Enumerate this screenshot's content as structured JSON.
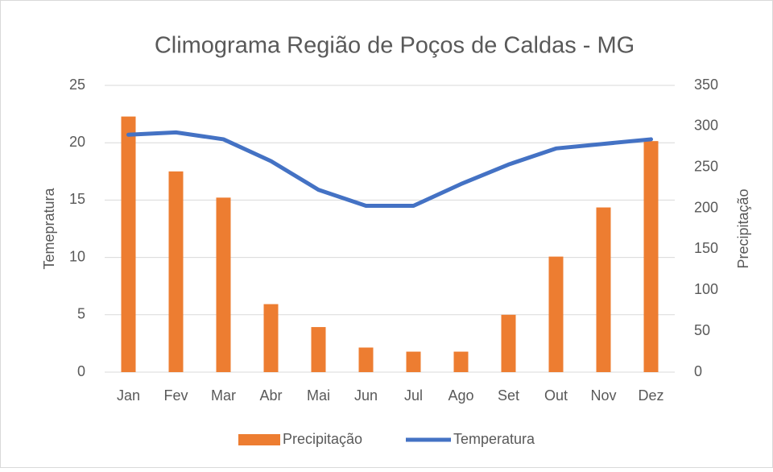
{
  "chart_data": {
    "type": "combo",
    "title": "Climograma Região de Poços de Caldas - MG",
    "categories": [
      "Jan",
      "Fev",
      "Mar",
      "Abr",
      "Mai",
      "Jun",
      "Jul",
      "Ago",
      "Set",
      "Out",
      "Nov",
      "Dez"
    ],
    "ylabel": "Temepratura",
    "y2label": "Precipitação",
    "ylim": [
      0,
      25
    ],
    "yticks": [
      0,
      5,
      10,
      15,
      20,
      25
    ],
    "y2lim": [
      0,
      350
    ],
    "y2ticks": [
      0,
      50,
      100,
      150,
      200,
      250,
      300,
      350
    ],
    "grid": true,
    "legend": "bottom",
    "series": [
      {
        "name": "Precipitação",
        "type": "bar",
        "axis": "y2",
        "color": "#ed7d31",
        "values": [
          312,
          245,
          213,
          83,
          55,
          30,
          25,
          25,
          70,
          141,
          201,
          282
        ]
      },
      {
        "name": "Temperatura",
        "type": "line",
        "axis": "y",
        "color": "#4472c4",
        "values": [
          20.7,
          20.9,
          20.3,
          18.4,
          15.9,
          14.5,
          14.5,
          16.4,
          18.1,
          19.5,
          19.9,
          20.3
        ]
      }
    ]
  }
}
